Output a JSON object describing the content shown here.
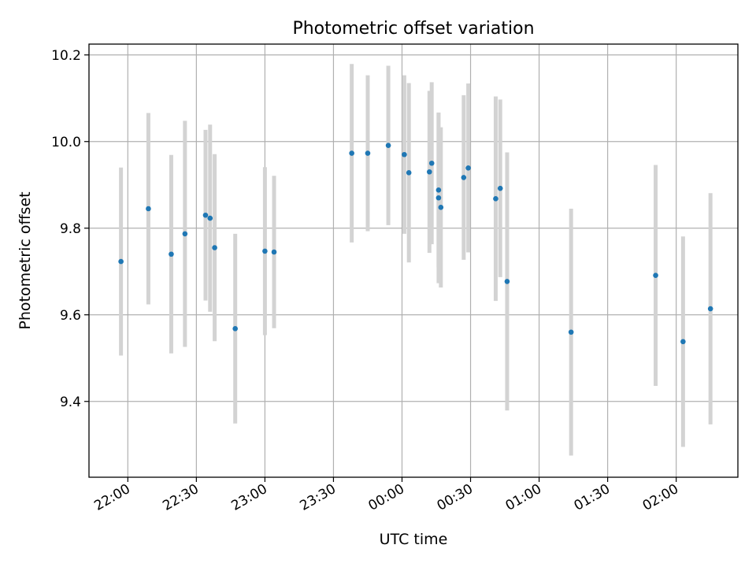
{
  "chart_data": {
    "type": "scatter",
    "title": "Photometric offset variation",
    "xlabel": "UTC time",
    "ylabel": "Photometric offset",
    "x_unit": "UTC time (HH:MM)",
    "xlim": [
      "21:43",
      "02:27"
    ],
    "ylim": [
      9.225,
      10.225
    ],
    "x_ticks": [
      "22:00",
      "22:30",
      "23:00",
      "23:30",
      "00:00",
      "00:30",
      "01:00",
      "01:30",
      "02:00"
    ],
    "y_ticks": [
      "9.4",
      "9.6",
      "9.8",
      "10.0",
      "10.2"
    ],
    "grid": true,
    "colors": {
      "points": "#1f77b4",
      "errorbars": "#d3d3d3"
    },
    "points": [
      {
        "x": "21:57",
        "y": 9.723,
        "err": 0.217
      },
      {
        "x": "22:09",
        "y": 9.845,
        "err": 0.221
      },
      {
        "x": "22:19",
        "y": 9.74,
        "err": 0.229
      },
      {
        "x": "22:25",
        "y": 9.787,
        "err": 0.261
      },
      {
        "x": "22:34",
        "y": 9.83,
        "err": 0.197
      },
      {
        "x": "22:36",
        "y": 9.823,
        "err": 0.216
      },
      {
        "x": "22:38",
        "y": 9.755,
        "err": 0.216
      },
      {
        "x": "22:47",
        "y": 9.568,
        "err": 0.219
      },
      {
        "x": "23:00",
        "y": 9.747,
        "err": 0.194
      },
      {
        "x": "23:04",
        "y": 9.745,
        "err": 0.176
      },
      {
        "x": "23:38",
        "y": 9.973,
        "err": 0.206
      },
      {
        "x": "23:45",
        "y": 9.973,
        "err": 0.18
      },
      {
        "x": "23:54",
        "y": 9.991,
        "err": 0.184
      },
      {
        "x": "00:01",
        "y": 9.97,
        "err": 0.183
      },
      {
        "x": "00:03",
        "y": 9.928,
        "err": 0.207
      },
      {
        "x": "00:12",
        "y": 9.93,
        "err": 0.187
      },
      {
        "x": "00:13",
        "y": 9.95,
        "err": 0.187
      },
      {
        "x": "00:16",
        "y": 9.888,
        "err": 0.178
      },
      {
        "x": "00:16",
        "y": 9.87,
        "err": 0.197
      },
      {
        "x": "00:17",
        "y": 9.848,
        "err": 0.185
      },
      {
        "x": "00:27",
        "y": 9.917,
        "err": 0.19
      },
      {
        "x": "00:29",
        "y": 9.939,
        "err": 0.195
      },
      {
        "x": "00:41",
        "y": 9.868,
        "err": 0.236
      },
      {
        "x": "00:43",
        "y": 9.892,
        "err": 0.205
      },
      {
        "x": "00:46",
        "y": 9.677,
        "err": 0.298
      },
      {
        "x": "01:14",
        "y": 9.56,
        "err": 0.285
      },
      {
        "x": "01:51",
        "y": 9.691,
        "err": 0.255
      },
      {
        "x": "02:03",
        "y": 9.538,
        "err": 0.243
      },
      {
        "x": "02:15",
        "y": 9.614,
        "err": 0.267
      }
    ]
  }
}
